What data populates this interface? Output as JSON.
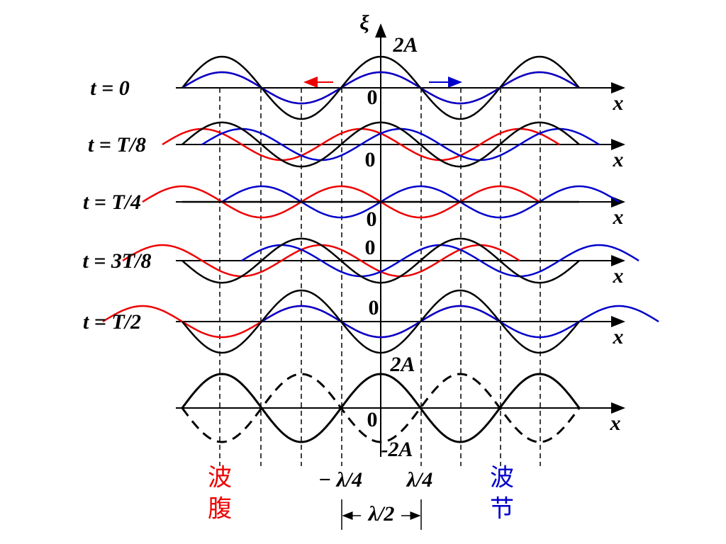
{
  "axis": {
    "symbol": "ξ",
    "top": "2A"
  },
  "rows": [
    {
      "label": "t = 0",
      "origin": "0",
      "x": "x"
    },
    {
      "label": "t = T/8",
      "origin": "0",
      "x": "x"
    },
    {
      "label": "t = T/4",
      "origin": "0",
      "x": "x"
    },
    {
      "label": "t = 3T/8",
      "origin": "0",
      "x": "x"
    },
    {
      "label": "t = T/2",
      "origin": "0",
      "x": "x"
    }
  ],
  "envelope": {
    "top": "2A",
    "origin": "0",
    "bottom": "-2A",
    "x": "x"
  },
  "annotations": {
    "neg_quarter": "− λ/4",
    "quarter": "λ/4",
    "half": "λ/2",
    "antinode": [
      "波",
      "腹"
    ],
    "node": [
      "波",
      "节"
    ]
  }
}
